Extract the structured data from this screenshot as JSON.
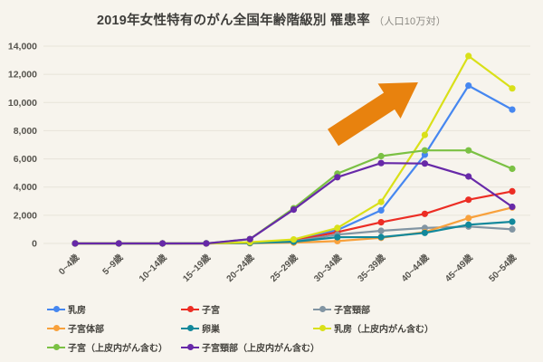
{
  "title": {
    "main": "2019年女性特有のがん全国年齢階級別 罹患率",
    "suffix": "（人口10万対）"
  },
  "colors": {
    "background": "#F7F4ED",
    "gridline": "#E7E3D9",
    "axis_text": "#56544E",
    "legend_text": "#45433E",
    "arrow": "#E8820E"
  },
  "chart_data": {
    "type": "line",
    "title": "2019年女性特有のがん全国年齢階級別 罹患率（人口10万対）",
    "categories": [
      "0~4歳",
      "5~9歳",
      "10~14歳",
      "15~19歳",
      "20~24歳",
      "25~29歳",
      "30~34歳",
      "35~39歳",
      "40~44歳",
      "45~49歳",
      "50~54歳"
    ],
    "ylim": [
      0,
      14000
    ],
    "ytick_step": 2000,
    "ytick_labels": [
      "0",
      "2,000",
      "4,000",
      "6,000",
      "8,000",
      "10,000",
      "12,000",
      "14,000"
    ],
    "grid": true,
    "legend_position": "bottom",
    "series": [
      {
        "id": "breast",
        "name": "乳房",
        "color": "#4687F0",
        "values": [
          0,
          0,
          0,
          0,
          70,
          230,
          950,
          2350,
          6300,
          11200,
          9500
        ]
      },
      {
        "id": "uterus",
        "name": "子宮",
        "color": "#EC2D24",
        "values": [
          0,
          0,
          0,
          0,
          50,
          200,
          800,
          1500,
          2100,
          3100,
          3700
        ]
      },
      {
        "id": "cervix",
        "name": "子宮頸部",
        "color": "#8295A3",
        "values": [
          0,
          0,
          0,
          0,
          40,
          150,
          630,
          900,
          1100,
          1200,
          1000
        ]
      },
      {
        "id": "uterine-body",
        "name": "子宮体部",
        "color": "#F8A13C",
        "values": [
          0,
          0,
          0,
          0,
          15,
          60,
          170,
          400,
          800,
          1800,
          2550
        ]
      },
      {
        "id": "ovary",
        "name": "卵巣",
        "color": "#12889B",
        "values": [
          0,
          0,
          0,
          10,
          30,
          120,
          440,
          450,
          750,
          1330,
          1540
        ]
      },
      {
        "id": "breast-incl-in-situ",
        "name": "乳房（上皮内がん含む）",
        "color": "#D9E018",
        "values": [
          0,
          0,
          0,
          0,
          90,
          280,
          1100,
          2950,
          7700,
          13300,
          11000
        ]
      },
      {
        "id": "uterus-incl-in-situ",
        "name": "子宮（上皮内がん含む）",
        "color": "#7BC144",
        "values": [
          0,
          0,
          0,
          0,
          310,
          2500,
          4950,
          6200,
          6600,
          6600,
          5300
        ]
      },
      {
        "id": "cervix-incl-in-situ",
        "name": "子宮頸部（上皮内がん含む）",
        "color": "#6729A8",
        "values": [
          0,
          0,
          0,
          0,
          310,
          2400,
          4700,
          5700,
          5670,
          4750,
          2600
        ]
      }
    ],
    "annotation": {
      "type": "block-arrow",
      "direction": "up-right",
      "color": "#E8820E"
    }
  }
}
